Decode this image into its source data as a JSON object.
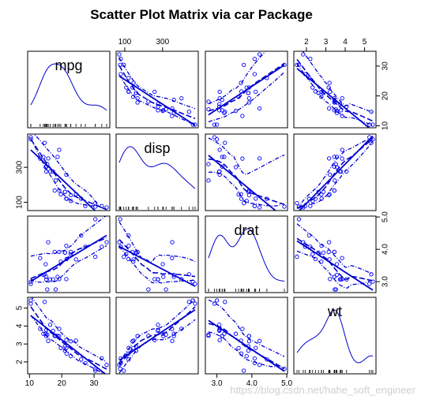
{
  "chart_data": {
    "type": "scatter",
    "title": "Scatter Plot Matrix via car Package",
    "variables": [
      "mpg",
      "disp",
      "drat",
      "wt"
    ],
    "ranges": {
      "mpg": [
        10.4,
        33.9
      ],
      "disp": [
        71.1,
        472
      ],
      "drat": [
        2.76,
        4.93
      ],
      "wt": [
        1.513,
        5.424
      ]
    },
    "ticks": {
      "mpg": [
        10,
        20,
        30
      ],
      "disp": [
        100,
        300
      ],
      "drat": [
        3.0,
        4.0,
        5.0
      ],
      "wt": [
        2,
        3,
        4,
        5
      ]
    },
    "tick_labels": {
      "top": [
        {
          "var": "disp",
          "labels": [
            "100",
            "300"
          ]
        },
        {
          "var": "wt",
          "labels": [
            "2",
            "3",
            "4",
            "5"
          ]
        }
      ],
      "right": [
        {
          "var": "mpg",
          "labels": [
            "10",
            "20",
            "30"
          ]
        },
        {
          "var": "drat",
          "labels": [
            "3.0",
            "4.0",
            "5.0"
          ]
        }
      ],
      "left": [
        {
          "var": "disp",
          "labels": [
            "100",
            "300"
          ]
        },
        {
          "var": "wt",
          "labels": [
            "2",
            "3",
            "4",
            "5"
          ]
        }
      ],
      "bottom": [
        {
          "var": "mpg",
          "labels": [
            "10",
            "20",
            "30"
          ]
        },
        {
          "var": "drat",
          "labels": [
            "3.0",
            "4.0",
            "5.0"
          ]
        }
      ]
    },
    "diagonal": "density with rug",
    "off_diagonal": "scatter with linear fit, loess smooth and spread lines",
    "series": [
      {
        "var": "mpg",
        "values": [
          21.0,
          21.0,
          22.8,
          21.4,
          18.7,
          18.1,
          14.3,
          24.4,
          22.8,
          19.2,
          17.8,
          16.4,
          17.3,
          15.2,
          10.4,
          10.4,
          14.7,
          32.4,
          30.4,
          33.9,
          21.5,
          15.5,
          15.2,
          13.3,
          19.2,
          27.3,
          26.0,
          30.4,
          15.8,
          19.7,
          15.0,
          21.4
        ]
      },
      {
        "var": "disp",
        "values": [
          160,
          160,
          108,
          258,
          360,
          225,
          360,
          146.7,
          140.8,
          167.6,
          167.6,
          275.8,
          275.8,
          275.8,
          472,
          460,
          440,
          78.7,
          75.7,
          71.1,
          120.1,
          318,
          304,
          350,
          400,
          79,
          120.3,
          95.1,
          351,
          145,
          301,
          121
        ]
      },
      {
        "var": "drat",
        "values": [
          3.9,
          3.9,
          3.85,
          3.08,
          3.15,
          2.76,
          3.21,
          3.69,
          3.92,
          3.92,
          3.92,
          3.07,
          3.07,
          3.07,
          2.93,
          3.0,
          3.23,
          4.08,
          4.93,
          4.22,
          3.7,
          2.76,
          3.15,
          3.73,
          3.08,
          4.08,
          4.43,
          3.77,
          4.22,
          3.62,
          3.54,
          4.11
        ]
      },
      {
        "var": "wt",
        "values": [
          2.62,
          2.875,
          2.32,
          3.215,
          3.44,
          3.46,
          3.57,
          3.19,
          3.15,
          3.44,
          3.44,
          4.07,
          3.73,
          3.78,
          5.25,
          5.424,
          5.345,
          2.2,
          1.615,
          1.835,
          2.465,
          3.52,
          3.435,
          3.84,
          3.845,
          1.935,
          2.14,
          1.513,
          3.17,
          2.77,
          3.57,
          2.78
        ]
      }
    ],
    "colors": {
      "points": "#0000ff",
      "lines": "#0000cd",
      "frame": "#000000",
      "background": "#ffffff"
    },
    "watermark": "https://blog.csdn.net/hahe_soft_engineer"
  }
}
